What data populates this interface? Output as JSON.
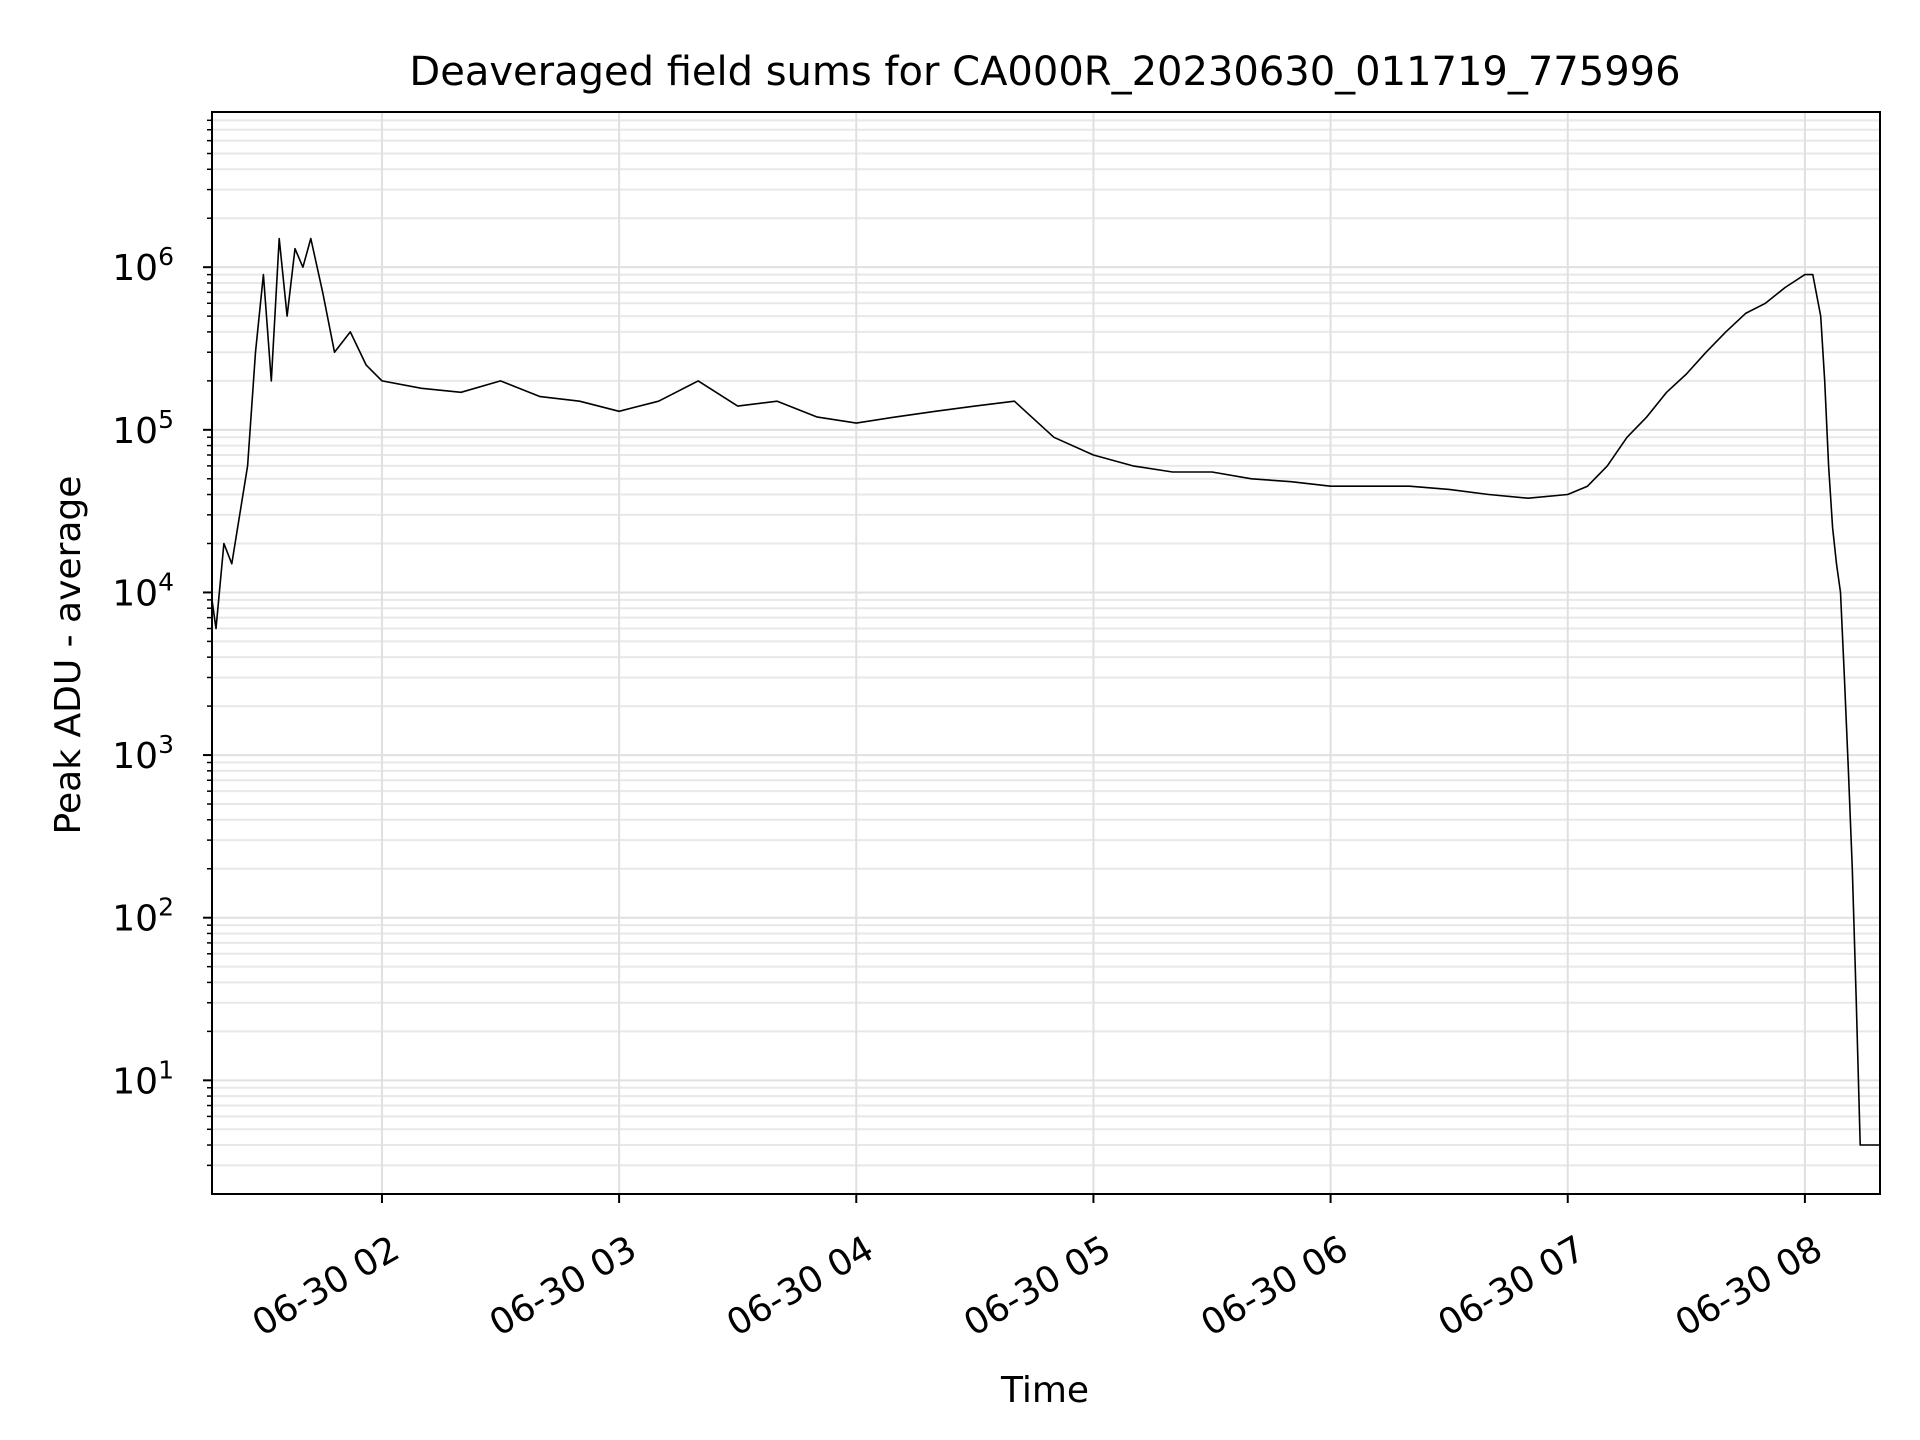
{
  "chart_data": {
    "type": "line",
    "title": "Deaveraged field sums for CA000R_20230630_011719_775996",
    "xlabel": "Time",
    "ylabel": "Peak ADU - average",
    "yscale": "log",
    "grid": true,
    "legend": "none",
    "xlim": [
      "2023-06-30 01:17",
      "2023-06-30 08:19"
    ],
    "ylim": [
      2,
      9000000
    ],
    "x_ticks": [
      {
        "value": "2023-06-30 02:00",
        "label": "06-30 02"
      },
      {
        "value": "2023-06-30 03:00",
        "label": "06-30 03"
      },
      {
        "value": "2023-06-30 04:00",
        "label": "06-30 04"
      },
      {
        "value": "2023-06-30 05:00",
        "label": "06-30 05"
      },
      {
        "value": "2023-06-30 06:00",
        "label": "06-30 06"
      },
      {
        "value": "2023-06-30 07:00",
        "label": "06-30 07"
      },
      {
        "value": "2023-06-30 08:00",
        "label": "06-30 08"
      }
    ],
    "y_ticks": [
      {
        "value": 10,
        "base": "10",
        "exp": "1"
      },
      {
        "value": 100,
        "base": "10",
        "exp": "2"
      },
      {
        "value": 1000,
        "base": "10",
        "exp": "3"
      },
      {
        "value": 10000,
        "base": "10",
        "exp": "4"
      },
      {
        "value": 100000,
        "base": "10",
        "exp": "5"
      },
      {
        "value": 1000000,
        "base": "10",
        "exp": "6"
      }
    ],
    "series": [
      {
        "color": "#000000",
        "x": [
          "2023-06-30 01:17",
          "2023-06-30 01:18",
          "2023-06-30 01:20",
          "2023-06-30 01:22",
          "2023-06-30 01:24",
          "2023-06-30 01:26",
          "2023-06-30 01:28",
          "2023-06-30 01:30",
          "2023-06-30 01:32",
          "2023-06-30 01:34",
          "2023-06-30 01:36",
          "2023-06-30 01:38",
          "2023-06-30 01:40",
          "2023-06-30 01:42",
          "2023-06-30 01:45",
          "2023-06-30 01:48",
          "2023-06-30 01:52",
          "2023-06-30 01:56",
          "2023-06-30 02:00",
          "2023-06-30 02:10",
          "2023-06-30 02:20",
          "2023-06-30 02:30",
          "2023-06-30 02:40",
          "2023-06-30 02:50",
          "2023-06-30 03:00",
          "2023-06-30 03:10",
          "2023-06-30 03:20",
          "2023-06-30 03:30",
          "2023-06-30 03:40",
          "2023-06-30 03:50",
          "2023-06-30 04:00",
          "2023-06-30 04:10",
          "2023-06-30 04:20",
          "2023-06-30 04:30",
          "2023-06-30 04:40",
          "2023-06-30 04:50",
          "2023-06-30 05:00",
          "2023-06-30 05:10",
          "2023-06-30 05:20",
          "2023-06-30 05:30",
          "2023-06-30 05:40",
          "2023-06-30 05:50",
          "2023-06-30 06:00",
          "2023-06-30 06:10",
          "2023-06-30 06:20",
          "2023-06-30 06:30",
          "2023-06-30 06:40",
          "2023-06-30 06:50",
          "2023-06-30 07:00",
          "2023-06-30 07:05",
          "2023-06-30 07:10",
          "2023-06-30 07:15",
          "2023-06-30 07:20",
          "2023-06-30 07:25",
          "2023-06-30 07:30",
          "2023-06-30 07:35",
          "2023-06-30 07:40",
          "2023-06-30 07:45",
          "2023-06-30 07:50",
          "2023-06-30 07:55",
          "2023-06-30 08:00",
          "2023-06-30 08:02",
          "2023-06-30 08:04",
          "2023-06-30 08:05",
          "2023-06-30 08:06",
          "2023-06-30 08:07",
          "2023-06-30 08:08",
          "2023-06-30 08:09",
          "2023-06-30 08:10",
          "2023-06-30 08:11",
          "2023-06-30 08:12",
          "2023-06-30 08:13",
          "2023-06-30 08:14",
          "2023-06-30 08:15",
          "2023-06-30 08:16",
          "2023-06-30 08:17",
          "2023-06-30 08:18",
          "2023-06-30 08:19"
        ],
        "y": [
          9000,
          6000,
          20000,
          15000,
          30000,
          60000,
          300000,
          900000,
          200000,
          1500000,
          500000,
          1300000,
          1000000,
          1500000,
          700000,
          300000,
          400000,
          250000,
          200000,
          180000,
          170000,
          200000,
          160000,
          150000,
          130000,
          150000,
          200000,
          140000,
          150000,
          120000,
          110000,
          120000,
          130000,
          140000,
          150000,
          90000,
          70000,
          60000,
          55000,
          55000,
          50000,
          48000,
          45000,
          45000,
          45000,
          43000,
          40000,
          38000,
          40000,
          45000,
          60000,
          90000,
          120000,
          170000,
          220000,
          300000,
          400000,
          520000,
          600000,
          750000,
          900000,
          900000,
          500000,
          200000,
          60000,
          25000,
          15000,
          10000,
          3000,
          800,
          200,
          30,
          4,
          4,
          4,
          4,
          4,
          4
        ]
      }
    ]
  }
}
